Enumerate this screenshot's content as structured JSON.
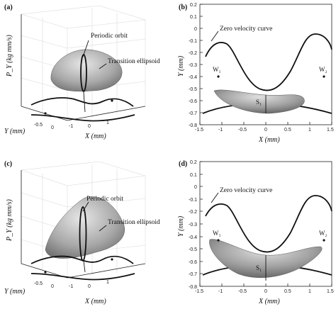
{
  "panels": [
    {
      "id": "a",
      "tag": "(a)",
      "annotations": {
        "periodic": "Periodic orbit",
        "transition": "Transition ellipsoid"
      },
      "axes": {
        "z": "P_Y (kg mm/s)",
        "y": "Y (mm)",
        "x": "X (mm)"
      },
      "x_ticks": [
        "-1",
        "0",
        "1"
      ],
      "y_ticks": [
        "-0.5",
        "0"
      ]
    },
    {
      "id": "b",
      "tag": "(b)",
      "annotations": {
        "zvc": "Zero velocity curve",
        "w1": "W₁",
        "w2": "W₂",
        "s1": "S₁"
      },
      "axes": {
        "x": "X (mm)",
        "y": "Y (mm)"
      },
      "x_ticks": [
        "-1.5",
        "-1",
        "-0.5",
        "0",
        "0.5",
        "1",
        "1.5"
      ],
      "y_ticks": [
        "0.2",
        "0.1",
        "0",
        "-0.1",
        "-0.2",
        "-0.3",
        "-0.4",
        "-0.5",
        "-0.6",
        "-0.7",
        "-0.8"
      ]
    },
    {
      "id": "c",
      "tag": "(c)",
      "annotations": {
        "periodic": "Periodic orbit",
        "transition": "Transition ellipsoid"
      },
      "axes": {
        "z": "P_Y (kg mm/s)",
        "y": "Y (mm)",
        "x": "X (mm)"
      },
      "x_ticks": [
        "-1",
        "0",
        "1"
      ],
      "y_ticks": [
        "-0.5",
        "0"
      ]
    },
    {
      "id": "d",
      "tag": "(d)",
      "annotations": {
        "zvc": "Zero velocity curve",
        "w1": "W₁",
        "w2": "W₂",
        "s1": "S₁"
      },
      "axes": {
        "x": "X (mm)",
        "y": "Y (mm)"
      },
      "x_ticks": [
        "-1.5",
        "-1",
        "-0.5",
        "0",
        "0.5",
        "1",
        "1.5"
      ],
      "y_ticks": [
        "0.2",
        "0.1",
        "0",
        "-0.1",
        "-0.2",
        "-0.3",
        "-0.4",
        "-0.5",
        "-0.6",
        "-0.7",
        "-0.8"
      ]
    }
  ],
  "colors": {
    "ellipsoid_light": "#d8d8d8",
    "ellipsoid_dark": "#6e6e6e",
    "curve": "#111111"
  }
}
